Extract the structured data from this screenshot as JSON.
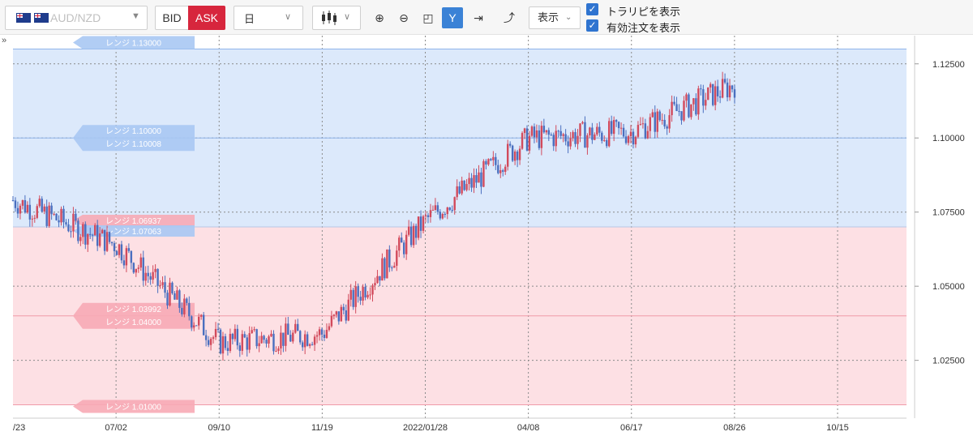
{
  "toolbar": {
    "pair_label": "AUD/NZD",
    "bid_label": "BID",
    "ask_label": "ASK",
    "timeframe": "日",
    "chart_style_icon": "candlestick-icon",
    "zoom_in_icon": "zoom-in-icon",
    "zoom_out_icon": "zoom-out-icon",
    "fit_icon": "fit-screen-icon",
    "auto_scale_icon": "auto-scale-icon",
    "jump_latest_icon": "jump-to-latest-icon",
    "indicator_icon": "add-indicator-icon",
    "show_label": "表示",
    "show_traripi_label": "トラリピを表示",
    "show_orders_label": "有効注文を表示",
    "show_traripi_checked": true,
    "show_orders_checked": true,
    "colors": {
      "ask": "#d7263d",
      "active": "#3b82d6",
      "checkbox": "#2f74d0"
    }
  },
  "chart_data": {
    "type": "candlestick",
    "instrument": "AUD/NZD",
    "timeframe": "日",
    "price_axis": {
      "ylim": [
        1.0055,
        1.1345
      ],
      "ticks": [
        "1.12500",
        "1.10000",
        "1.07500",
        "1.05000",
        "1.02500"
      ]
    },
    "time_axis": {
      "ticks": [
        "/23",
        "07/02",
        "09/10",
        "11/19",
        "2022/01/28",
        "04/08",
        "06/17",
        "08/26",
        "10/15"
      ]
    },
    "grid": true,
    "price_path": [
      [
        "/23",
        1.079
      ],
      [
        "07/02",
        1.064
      ],
      [
        "09/10",
        1.031
      ],
      [
        "11/19",
        1.034
      ],
      [
        "2022/01/28",
        1.072
      ],
      [
        "04/08",
        1.1
      ],
      [
        "06/17",
        1.102
      ],
      [
        "08/26",
        1.118
      ]
    ],
    "zones": [
      {
        "name": "buy-zone",
        "from": 1.13,
        "to": 1.07,
        "color": "#dce9fb"
      },
      {
        "name": "sell-zone",
        "from": 1.07,
        "to": 1.01,
        "color": "#fde0e4"
      }
    ],
    "range_labels": [
      {
        "text": "レンジ 1.13000",
        "value": 1.13,
        "zone": "buy"
      },
      {
        "text": "レンジ 1.10000",
        "value": 1.1,
        "zone": "buy"
      },
      {
        "text": "レンジ 1.10008",
        "value": 1.10008,
        "zone": "buy"
      },
      {
        "text": "レンジ 1.06937",
        "value": 1.06937,
        "zone": "sell"
      },
      {
        "text": "レンジ 1.07063",
        "value": 1.07063,
        "zone": "buy"
      },
      {
        "text": "レンジ 1.03992",
        "value": 1.03992,
        "zone": "sell"
      },
      {
        "text": "レンジ 1.04000",
        "value": 1.04,
        "zone": "sell"
      },
      {
        "text": "レンジ 1.01000",
        "value": 1.01,
        "zone": "sell"
      }
    ],
    "colors": {
      "up": "#d24a5c",
      "down": "#4a6fbf",
      "buy_line": "#8fb4ea",
      "sell_line": "#f09aa8"
    }
  }
}
